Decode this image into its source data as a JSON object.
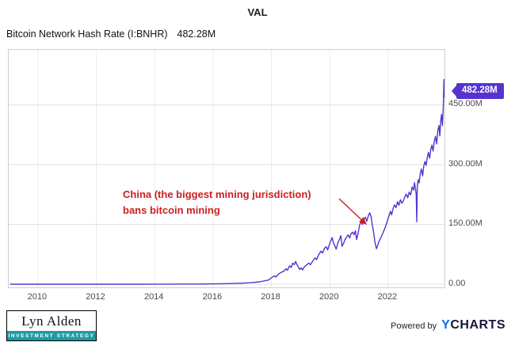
{
  "header": {
    "title": "VAL",
    "series_name": "Bitcoin Network Hash Rate (I:BNHR)",
    "current_value": "482.28M"
  },
  "badge": {
    "label": "482.28M",
    "color": "#5633d1"
  },
  "chart_data": {
    "type": "line",
    "title": "VAL",
    "xlabel": "",
    "ylabel": "",
    "legend": "none",
    "grid": true,
    "line_color": "#5633d1",
    "x_range": [
      2009.0,
      2023.93
    ],
    "y_range": [
      0,
      588
    ],
    "y_ticks": [
      {
        "value": 0,
        "label": "0.00"
      },
      {
        "value": 150,
        "label": "150.00M"
      },
      {
        "value": 300,
        "label": "300.00M"
      },
      {
        "value": 450,
        "label": "450.00M"
      }
    ],
    "x_ticks": [
      {
        "value": 2010,
        "label": "2010"
      },
      {
        "value": 2012,
        "label": "2012"
      },
      {
        "value": 2014,
        "label": "2014"
      },
      {
        "value": 2016,
        "label": "2016"
      },
      {
        "value": 2018,
        "label": "2018"
      },
      {
        "value": 2020,
        "label": "2020"
      },
      {
        "value": 2022,
        "label": "2022"
      }
    ],
    "last_point": {
      "x": 2023.93,
      "y": 482.28,
      "label": "482.28M"
    },
    "annotation": {
      "lines": [
        "China (the biggest mining jurisdiction)",
        "bans bitcoin mining"
      ],
      "color": "#cc1f1f",
      "points_to": {
        "x": 2021.45,
        "y": 150
      }
    },
    "series": [
      {
        "name": "Bitcoin Network Hash Rate (I:BNHR)",
        "x": [
          2009.05,
          2010.0,
          2011.0,
          2012.0,
          2013.0,
          2013.5,
          2014.0,
          2014.5,
          2015.0,
          2015.5,
          2016.0,
          2016.5,
          2017.0,
          2017.3,
          2017.6,
          2017.9,
          2018.0,
          2018.1,
          2018.15,
          2018.25,
          2018.35,
          2018.45,
          2018.5,
          2018.55,
          2018.62,
          2018.68,
          2018.73,
          2018.78,
          2018.83,
          2018.87,
          2018.92,
          2018.97,
          2019.02,
          2019.07,
          2019.12,
          2019.2,
          2019.28,
          2019.34,
          2019.42,
          2019.5,
          2019.55,
          2019.62,
          2019.7,
          2019.75,
          2019.82,
          2019.88,
          2019.93,
          2019.98,
          2020.03,
          2020.08,
          2020.13,
          2020.18,
          2020.22,
          2020.28,
          2020.33,
          2020.38,
          2020.42,
          2020.47,
          2020.52,
          2020.58,
          2020.63,
          2020.68,
          2020.73,
          2020.78,
          2020.83,
          2020.88,
          2020.92,
          2020.97,
          2021.02,
          2021.07,
          2021.12,
          2021.17,
          2021.22,
          2021.27,
          2021.32,
          2021.37,
          2021.42,
          2021.45,
          2021.5,
          2021.55,
          2021.6,
          2021.64,
          2021.68,
          2021.73,
          2021.78,
          2021.83,
          2021.88,
          2021.93,
          2021.98,
          2022.03,
          2022.08,
          2022.12,
          2022.17,
          2022.22,
          2022.27,
          2022.32,
          2022.37,
          2022.42,
          2022.47,
          2022.52,
          2022.57,
          2022.62,
          2022.67,
          2022.72,
          2022.77,
          2022.82,
          2022.87,
          2022.9,
          2022.93,
          2022.96,
          2022.98,
          2023.0,
          2023.03,
          2023.06,
          2023.1,
          2023.14,
          2023.18,
          2023.22,
          2023.26,
          2023.3,
          2023.34,
          2023.38,
          2023.42,
          2023.46,
          2023.5,
          2023.54,
          2023.58,
          2023.62,
          2023.66,
          2023.7,
          2023.74,
          2023.77,
          2023.8,
          2023.83,
          2023.86,
          2023.89,
          2023.91,
          2023.92,
          2023.93
        ],
        "values": [
          0,
          0,
          0.005,
          0.01,
          0.02,
          0.05,
          0.12,
          0.25,
          0.32,
          0.42,
          0.75,
          1.4,
          2.6,
          3.8,
          6,
          10.5,
          16,
          21,
          18,
          26,
          30,
          34,
          39,
          35,
          46,
          42,
          53,
          49,
          57,
          50,
          44,
          37,
          41,
          36,
          43,
          48,
          53,
          49,
          59,
          66,
          62,
          74,
          83,
          78,
          90,
          94,
          86,
          98,
          108,
          117,
          103,
          95,
          88,
          104,
          112,
          122,
          95,
          102,
          112,
          119,
          124,
          116,
          127,
          131,
          124,
          134,
          112,
          128,
          148,
          156,
          150,
          163,
          168,
          158,
          172,
          179,
          168,
          152,
          131,
          104,
          89,
          97,
          106,
          114,
          122,
          130,
          139,
          149,
          161,
          172,
          183,
          174,
          190,
          199,
          192,
          207,
          198,
          212,
          203,
          209,
          219,
          226,
          217,
          231,
          224,
          244,
          236,
          255,
          242,
          226,
          157,
          246,
          262,
          254,
          277,
          289,
          272,
          296,
          308,
          298,
          318,
          331,
          316,
          338,
          349,
          334,
          358,
          371,
          352,
          384,
          398,
          372,
          408,
          426,
          398,
          444,
          514,
          470,
          482.28
        ]
      }
    ]
  },
  "footer": {
    "logo": {
      "name": "Lyn Alden",
      "tagline": "INVESTMENT STRATEGY"
    },
    "powered_by": "Powered by",
    "brand": {
      "prefix": "Y",
      "rest": "CHARTS"
    }
  }
}
